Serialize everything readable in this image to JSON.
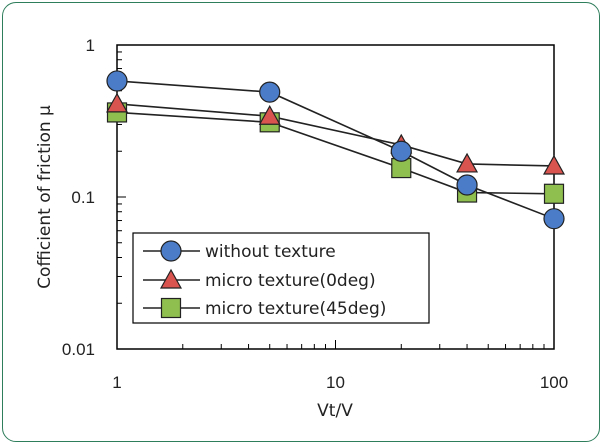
{
  "chart_data": {
    "type": "line",
    "xlabel": "Vt/V",
    "ylabel": "Cofficient of friction μ",
    "x_scale": "log",
    "y_scale": "log",
    "xlim": [
      1,
      100
    ],
    "ylim": [
      0.01,
      1
    ],
    "x_ticks": [
      {
        "value": 1,
        "label": "1"
      },
      {
        "value": 10,
        "label": "10"
      },
      {
        "value": 100,
        "label": "100"
      }
    ],
    "y_ticks": [
      {
        "value": 0.01,
        "label": "0.01"
      },
      {
        "value": 0.1,
        "label": "0.1"
      },
      {
        "value": 1,
        "label": "1"
      }
    ],
    "grid": false,
    "legend_position": "lower-left",
    "series": [
      {
        "name": "without texture",
        "marker": "circle",
        "color": "#4a7cc8",
        "x": [
          1,
          5,
          20,
          40,
          100
        ],
        "y": [
          0.58,
          0.49,
          0.2,
          0.12,
          0.072
        ]
      },
      {
        "name": "micro texture(0deg)",
        "marker": "triangle",
        "color": "#d9534f",
        "x": [
          1,
          5,
          20,
          40,
          100
        ],
        "y": [
          0.41,
          0.34,
          0.22,
          0.165,
          0.16
        ]
      },
      {
        "name": "micro texture(45deg)",
        "marker": "square",
        "color": "#8fbf4f",
        "x": [
          1,
          5,
          20,
          40,
          100
        ],
        "y": [
          0.36,
          0.31,
          0.155,
          0.107,
          0.105
        ]
      }
    ]
  }
}
